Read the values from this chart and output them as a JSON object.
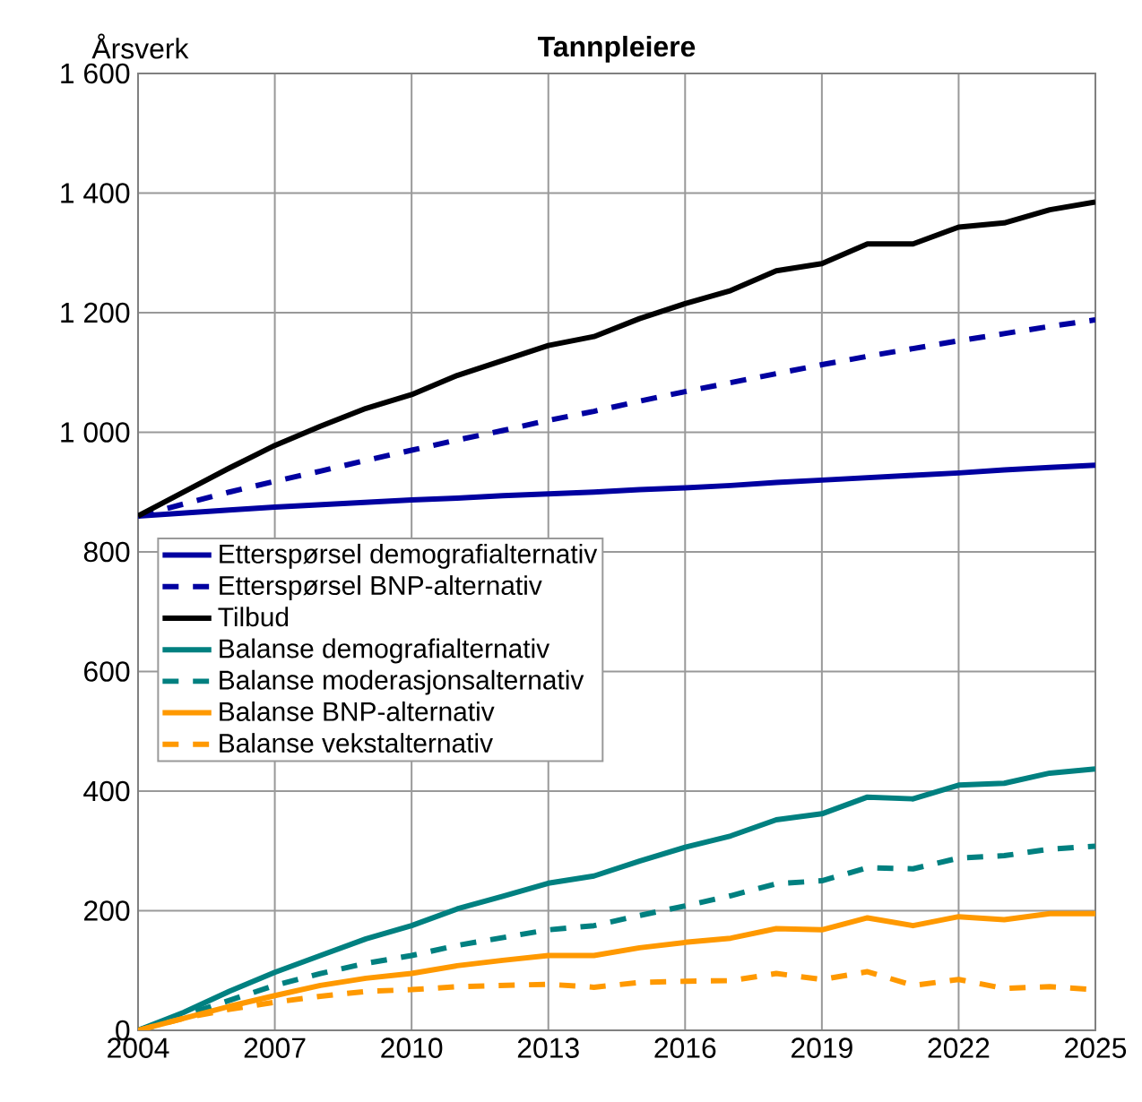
{
  "chart_data": {
    "type": "line",
    "title": "Tannpleiere",
    "ylabel": "Årsverk",
    "x": [
      2004,
      2005,
      2006,
      2007,
      2008,
      2009,
      2010,
      2011,
      2012,
      2013,
      2014,
      2015,
      2016,
      2017,
      2018,
      2019,
      2020,
      2021,
      2022,
      2023,
      2024,
      2025
    ],
    "xlim": [
      2004,
      2025
    ],
    "xticks": [
      2004,
      2007,
      2010,
      2013,
      2016,
      2019,
      2022,
      2025
    ],
    "ylim": [
      0,
      1600
    ],
    "yticks": [
      0,
      200,
      400,
      600,
      800,
      {
        "value": 1000,
        "label": "1 000"
      },
      {
        "value": 1200,
        "label": "1 200"
      },
      {
        "value": 1400,
        "label": "1 400"
      },
      {
        "value": 1600,
        "label": "1 600"
      }
    ],
    "grid": true,
    "legend": "left",
    "marker": "none",
    "series": [
      {
        "name": "Etterspørsel demografialternativ",
        "color": "#0000a0",
        "line_style": "solid",
        "values": [
          860,
          865,
          870,
          875,
          879,
          883,
          887,
          890,
          894,
          897,
          900,
          904,
          907,
          911,
          916,
          920,
          924,
          928,
          932,
          937,
          941,
          945
        ]
      },
      {
        "name": "Etterspørsel BNP-alternativ",
        "color": "#0000a0",
        "line_style": "dashed",
        "values": [
          860,
          880,
          900,
          918,
          935,
          953,
          970,
          987,
          1003,
          1020,
          1035,
          1052,
          1068,
          1083,
          1098,
          1113,
          1127,
          1140,
          1153,
          1165,
          1177,
          1188
        ]
      },
      {
        "name": "Tilbud",
        "color": "#000000",
        "line_style": "solid",
        "values": [
          860,
          900,
          940,
          978,
          1010,
          1040,
          1063,
          1095,
          1120,
          1145,
          1160,
          1190,
          1215,
          1237,
          1270,
          1282,
          1315,
          1315,
          1343,
          1350,
          1372,
          1385
        ]
      },
      {
        "name": "Balanse demografialternativ",
        "color": "#008080",
        "line_style": "solid",
        "values": [
          0,
          30,
          65,
          97,
          125,
          153,
          175,
          203,
          224,
          246,
          258,
          283,
          306,
          325,
          352,
          362,
          390,
          387,
          410,
          413,
          430,
          437
        ]
      },
      {
        "name": "Balanse moderasjonsalternativ",
        "color": "#008080",
        "line_style": "dashed",
        "values": [
          0,
          25,
          50,
          75,
          95,
          112,
          125,
          142,
          155,
          168,
          175,
          192,
          208,
          225,
          245,
          250,
          272,
          270,
          288,
          292,
          303,
          308
        ]
      },
      {
        "name": "Balanse BNP-alternativ",
        "color": "#ff9900",
        "line_style": "solid",
        "values": [
          0,
          20,
          40,
          58,
          75,
          87,
          95,
          108,
          117,
          125,
          125,
          138,
          147,
          154,
          170,
          168,
          188,
          175,
          190,
          185,
          195,
          195
        ]
      },
      {
        "name": "Balanse vekstalternativ",
        "color": "#ff9900",
        "line_style": "dashed",
        "values": [
          0,
          20,
          35,
          47,
          57,
          65,
          68,
          73,
          75,
          77,
          72,
          80,
          82,
          83,
          95,
          85,
          98,
          75,
          85,
          70,
          73,
          68
        ]
      }
    ]
  }
}
